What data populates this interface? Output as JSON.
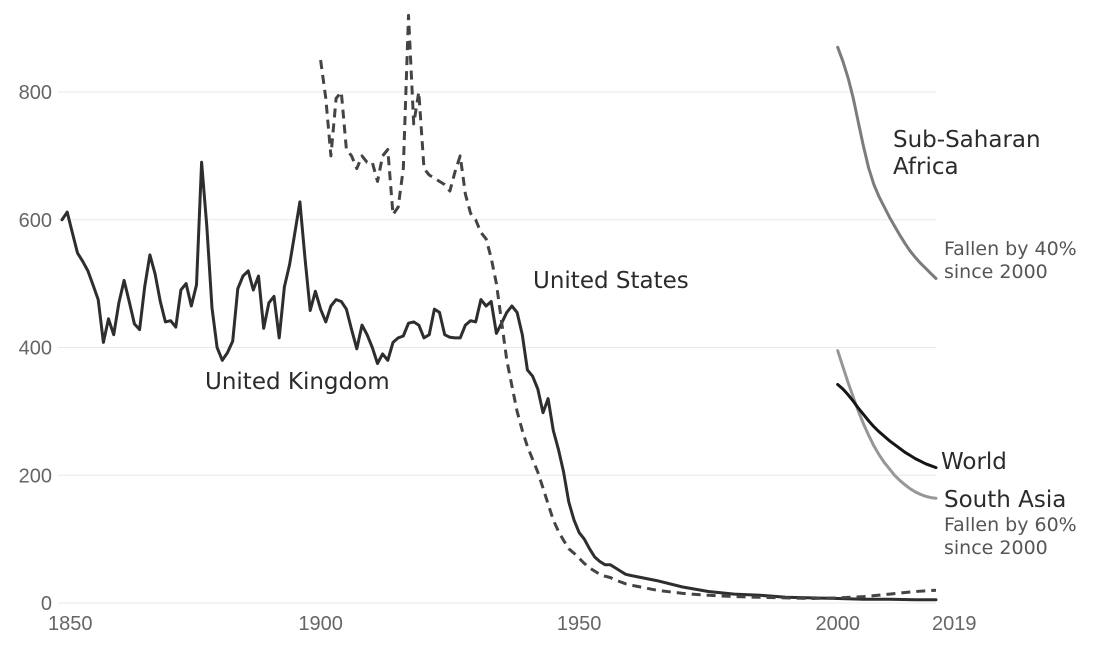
{
  "chart_data": {
    "type": "line",
    "title": "",
    "xlabel": "",
    "ylabel": "",
    "xlim": [
      1850,
      2019
    ],
    "ylim": [
      0,
      900
    ],
    "grid": true,
    "legend": "none",
    "x_ticks": [
      "1850",
      "1900",
      "1950",
      "2000",
      "2019"
    ],
    "y_ticks": [
      "0",
      "200",
      "400",
      "600",
      "800"
    ],
    "annotations": {
      "ssa_note_1": "Fallen by 40%",
      "ssa_note_2": "since 2000",
      "sa_note_1": "Fallen by 60%",
      "sa_note_2": "since 2000"
    },
    "series": [
      {
        "name": "United Kingdom",
        "name_lines": [
          "United Kingdom"
        ],
        "color": "#2e2e2e",
        "dash": "solid",
        "x": [
          1850,
          1851,
          1852,
          1853,
          1854,
          1855,
          1856,
          1857,
          1858,
          1859,
          1860,
          1861,
          1862,
          1863,
          1864,
          1865,
          1866,
          1867,
          1868,
          1869,
          1870,
          1871,
          1872,
          1873,
          1874,
          1875,
          1876,
          1877,
          1878,
          1879,
          1880,
          1881,
          1882,
          1883,
          1884,
          1885,
          1886,
          1887,
          1888,
          1889,
          1890,
          1891,
          1892,
          1893,
          1894,
          1895,
          1896,
          1897,
          1898,
          1899,
          1900,
          1901,
          1902,
          1903,
          1904,
          1905,
          1906,
          1907,
          1908,
          1909,
          1910,
          1911,
          1912,
          1913,
          1914,
          1915,
          1916,
          1917,
          1918,
          1919,
          1920,
          1921,
          1922,
          1923,
          1924,
          1925,
          1926,
          1927,
          1928,
          1929,
          1930,
          1931,
          1932,
          1933,
          1934,
          1935,
          1936,
          1937,
          1938,
          1939,
          1940,
          1941,
          1942,
          1943,
          1944,
          1945,
          1946,
          1947,
          1948,
          1949,
          1950,
          1951,
          1952,
          1953,
          1954,
          1955,
          1956,
          1957,
          1958,
          1959,
          1960,
          1965,
          1970,
          1975,
          1980,
          1985,
          1990,
          1995,
          2000,
          2005,
          2010,
          2015,
          2019
        ],
        "y": [
          600,
          612,
          580,
          548,
          535,
          520,
          498,
          475,
          408,
          445,
          420,
          470,
          505,
          472,
          437,
          428,
          495,
          545,
          515,
          472,
          440,
          442,
          432,
          490,
          500,
          465,
          498,
          690,
          590,
          462,
          400,
          380,
          392,
          410,
          492,
          512,
          520,
          490,
          512,
          430,
          470,
          480,
          415,
          495,
          530,
          578,
          628,
          538,
          458,
          488,
          460,
          440,
          465,
          475,
          472,
          460,
          428,
          398,
          435,
          420,
          400,
          375,
          390,
          380,
          408,
          415,
          418,
          438,
          440,
          435,
          415,
          420,
          460,
          455,
          420,
          416,
          415,
          415,
          435,
          442,
          440,
          475,
          465,
          472,
          422,
          438,
          455,
          465,
          455,
          420,
          365,
          355,
          335,
          298,
          320,
          270,
          240,
          205,
          158,
          130,
          110,
          100,
          85,
          72,
          65,
          60,
          60,
          55,
          50,
          45,
          43,
          35,
          25,
          18,
          14,
          12,
          9,
          8,
          7,
          6,
          6,
          5,
          5
        ]
      },
      {
        "name": "United States",
        "name_lines": [
          "United States"
        ],
        "color": "#444444",
        "dash": "dashed",
        "x": [
          1900,
          1901,
          1902,
          1903,
          1904,
          1905,
          1906,
          1907,
          1908,
          1909,
          1910,
          1911,
          1912,
          1913,
          1914,
          1915,
          1916,
          1917,
          1918,
          1919,
          1920,
          1921,
          1922,
          1923,
          1924,
          1925,
          1926,
          1927,
          1928,
          1929,
          1930,
          1931,
          1932,
          1933,
          1934,
          1935,
          1936,
          1937,
          1938,
          1939,
          1940,
          1941,
          1942,
          1943,
          1944,
          1945,
          1946,
          1947,
          1948,
          1949,
          1950,
          1951,
          1952,
          1953,
          1954,
          1955,
          1956,
          1957,
          1958,
          1959,
          1960,
          1965,
          1970,
          1975,
          1980,
          1985,
          1990,
          1995,
          2000,
          2005,
          2010,
          2015,
          2019
        ],
        "y": [
          850,
          790,
          700,
          790,
          800,
          710,
          700,
          680,
          700,
          690,
          690,
          660,
          700,
          710,
          608,
          620,
          680,
          920,
          750,
          800,
          680,
          670,
          665,
          660,
          655,
          645,
          675,
          700,
          640,
          610,
          600,
          580,
          570,
          540,
          500,
          440,
          380,
          340,
          300,
          270,
          245,
          225,
          205,
          180,
          155,
          130,
          112,
          98,
          85,
          78,
          70,
          62,
          55,
          50,
          45,
          42,
          40,
          36,
          33,
          30,
          28,
          20,
          15,
          12,
          10,
          9,
          8,
          7,
          8,
          10,
          14,
          18,
          20
        ]
      },
      {
        "name": "Sub-Saharan Africa",
        "name_lines": [
          "Sub-Saharan",
          "Africa"
        ],
        "color": "#7c7c7c",
        "dash": "solid",
        "x": [
          2000,
          2001,
          2002,
          2003,
          2004,
          2005,
          2006,
          2007,
          2008,
          2009,
          2010,
          2011,
          2012,
          2013,
          2014,
          2015,
          2016,
          2017,
          2018,
          2019
        ],
        "y": [
          870,
          848,
          822,
          790,
          752,
          714,
          680,
          655,
          636,
          620,
          604,
          590,
          576,
          563,
          551,
          541,
          532,
          524,
          516,
          508
        ]
      },
      {
        "name": "South Asia",
        "name_lines": [
          "South Asia"
        ],
        "color": "#979797",
        "dash": "solid",
        "x": [
          2000,
          2001,
          2002,
          2003,
          2004,
          2005,
          2006,
          2007,
          2008,
          2009,
          2010,
          2011,
          2012,
          2013,
          2014,
          2015,
          2016,
          2017,
          2018,
          2019
        ],
        "y": [
          395,
          370,
          345,
          322,
          300,
          280,
          262,
          246,
          232,
          220,
          210,
          200,
          192,
          185,
          179,
          174,
          170,
          167,
          165,
          164
        ]
      },
      {
        "name": "World",
        "name_lines": [
          "World"
        ],
        "color": "#151515",
        "dash": "solid",
        "x": [
          2000,
          2001,
          2002,
          2003,
          2004,
          2005,
          2006,
          2007,
          2008,
          2009,
          2010,
          2011,
          2012,
          2013,
          2014,
          2015,
          2016,
          2017,
          2018,
          2019
        ],
        "y": [
          342,
          335,
          326,
          316,
          305,
          295,
          285,
          276,
          268,
          261,
          254,
          248,
          242,
          236,
          231,
          226,
          222,
          218,
          215,
          212
        ]
      }
    ]
  }
}
